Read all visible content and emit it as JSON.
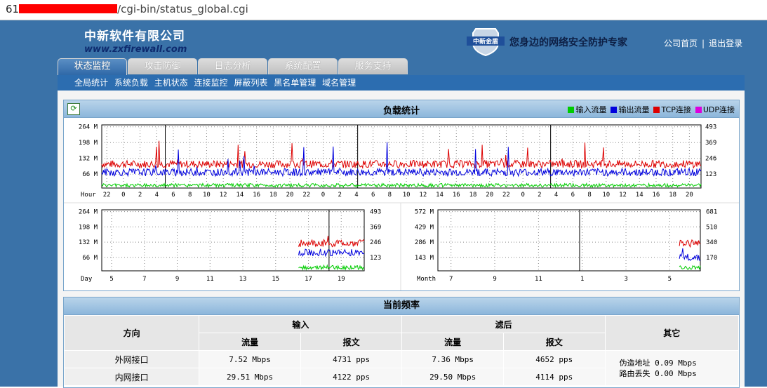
{
  "browser": {
    "url_prefix": "61",
    "url_path": "/cgi-bin/status_global.cgi"
  },
  "brand": {
    "name_cn": "中新软件有限公司",
    "url": "www.zxfirewall.com",
    "logo_text": "中新金盾"
  },
  "slogan": "您身边的网络安全防护专家",
  "top_links": {
    "home": "公司首页",
    "separator": "|",
    "logout": "退出登录"
  },
  "tabs": [
    {
      "label": "状态监控",
      "active": true
    },
    {
      "label": "攻击防御",
      "active": false
    },
    {
      "label": "日志分析",
      "active": false
    },
    {
      "label": "系统配置",
      "active": false
    },
    {
      "label": "服务支持",
      "active": false
    }
  ],
  "subnav": [
    "全局统计",
    "系统负载",
    "主机状态",
    "连接监控",
    "屏蔽列表",
    "黑名单管理",
    "域名管理"
  ],
  "load_panel": {
    "title": "负载统计",
    "legend": [
      {
        "label": "输入流量",
        "color": "#00cc00"
      },
      {
        "label": "输出流量",
        "color": "#0000dd"
      },
      {
        "label": "TCP连接",
        "color": "#dd0000"
      },
      {
        "label": "UDP连接",
        "color": "#dd00dd"
      }
    ]
  },
  "chart_data": [
    {
      "type": "line",
      "x_label": "Hour",
      "x_ticks": [
        "22",
        "0",
        "2",
        "4",
        "6",
        "8",
        "10",
        "12",
        "14",
        "16",
        "18",
        "20",
        "22",
        "0",
        "2",
        "4",
        "6",
        "8",
        "10",
        "12",
        "14",
        "16",
        "18",
        "20",
        "22",
        "0",
        "2",
        "4",
        "6",
        "8",
        "10",
        "12",
        "14",
        "16",
        "18",
        "20"
      ],
      "y_left_ticks": [
        "264 M",
        "198 M",
        "132 M",
        "66 M"
      ],
      "y_right_ticks": [
        "493",
        "369",
        "246",
        "123"
      ],
      "series": [
        {
          "name": "TCP连接",
          "color": "#dd0000",
          "level": 0.38
        },
        {
          "name": "输出流量",
          "color": "#0000dd",
          "level": 0.25
        },
        {
          "name": "输入流量",
          "color": "#00cc00",
          "level": 0.04
        }
      ]
    },
    {
      "type": "line",
      "x_label": "Day",
      "x_ticks": [
        "5",
        "7",
        "9",
        "11",
        "13",
        "15",
        "17",
        "19"
      ],
      "y_left_ticks": [
        "264 M",
        "198 M",
        "132 M",
        "66 M"
      ],
      "y_right_ticks": [
        "493",
        "369",
        "246",
        "123"
      ],
      "series": [
        {
          "name": "TCP连接",
          "color": "#dd0000",
          "level": 0.45
        },
        {
          "name": "输出流量",
          "color": "#0000dd",
          "level": 0.3
        },
        {
          "name": "输入流量",
          "color": "#00cc00",
          "level": 0.05
        }
      ],
      "data_start_fraction": 0.75
    },
    {
      "type": "line",
      "x_label": "Month",
      "x_ticks": [
        "7",
        "9",
        "11",
        "1",
        "3",
        "5"
      ],
      "y_left_ticks": [
        "572 M",
        "429 M",
        "286 M",
        "143 M"
      ],
      "y_right_ticks": [
        "681",
        "510",
        "340",
        "170"
      ],
      "series": [
        {
          "name": "TCP连接",
          "color": "#dd0000",
          "level": 0.45
        },
        {
          "name": "输出流量",
          "color": "#0000dd",
          "level": 0.22
        },
        {
          "name": "输入流量",
          "color": "#00cc00",
          "level": 0.05
        }
      ],
      "data_start_fraction": 0.92
    }
  ],
  "rate_panel": {
    "title": "当前频率",
    "headers": {
      "direction": "方向",
      "input": "输入",
      "filtered": "滤后",
      "other": "其它",
      "traffic": "流量",
      "packets": "报文"
    },
    "rows": [
      {
        "name": "外网接口",
        "in_traffic": "7.52 Mbps",
        "in_packets": "4731 pps",
        "f_traffic": "7.36 Mbps",
        "f_packets": "4652 pps"
      },
      {
        "name": "内网接口",
        "in_traffic": "29.51 Mbps",
        "in_packets": "4122 pps",
        "f_traffic": "29.50 Mbps",
        "f_packets": "4114 pps"
      }
    ],
    "other": {
      "line1": "伪造地址 0.09 Mbps",
      "line2": "路由丢失 0.00 Mbps"
    }
  }
}
